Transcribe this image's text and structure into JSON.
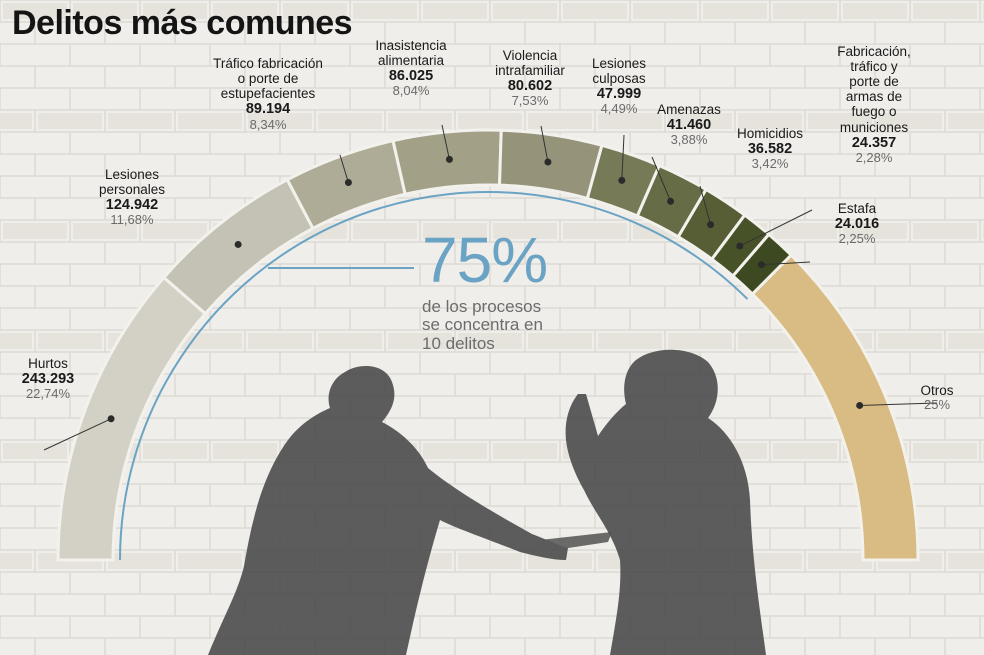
{
  "title": "Delitos más comunes",
  "center": {
    "percent": "75%",
    "caption_lines": [
      "de los procesos",
      "se concentra en",
      "10 delitos"
    ]
  },
  "colors": {
    "accent_line": "#6aa3c4",
    "otros": "#d8bc84",
    "hurtos": "#d3d1c6",
    "dark_green": "#3d4a21"
  },
  "chart_data": {
    "type": "pie",
    "title": "Delitos más comunes",
    "categories": [
      {
        "name": "Hurtos",
        "name_lines": [
          "Hurtos"
        ],
        "value": 243293,
        "value_label": "243.293",
        "percent": 22.74,
        "percent_label": "22,74%",
        "color": "#d3d1c6"
      },
      {
        "name": "Lesiones personales",
        "name_lines": [
          "Lesiones",
          "personales"
        ],
        "value": 124942,
        "value_label": "124.942",
        "percent": 11.68,
        "percent_label": "11,68%",
        "color": "#c4c2b4"
      },
      {
        "name": "Tráfico fabricación o porte de estupefacientes",
        "name_lines": [
          "Tráfico fabricación",
          "o porte de",
          "estupefacientes"
        ],
        "value": 89194,
        "value_label": "89.194",
        "percent": 8.34,
        "percent_label": "8,34%",
        "color": "#aeac97"
      },
      {
        "name": "Inasistencia alimentaria",
        "name_lines": [
          "Inasistencia",
          "alimentaria"
        ],
        "value": 86025,
        "value_label": "86.025",
        "percent": 8.04,
        "percent_label": "8,04%",
        "color": "#a2a188"
      },
      {
        "name": "Violencia intrafamiliar",
        "name_lines": [
          "Violencia",
          "intrafamiliar"
        ],
        "value": 80602,
        "value_label": "80.602",
        "percent": 7.53,
        "percent_label": "7,53%",
        "color": "#95947b"
      },
      {
        "name": "Lesiones culposas",
        "name_lines": [
          "Lesiones",
          "culposas"
        ],
        "value": 47999,
        "value_label": "47.999",
        "percent": 4.49,
        "percent_label": "4,49%",
        "color": "#767a57"
      },
      {
        "name": "Amenazas",
        "name_lines": [
          "Amenazas"
        ],
        "value": 41460,
        "value_label": "41.460",
        "percent": 3.88,
        "percent_label": "3,88%",
        "color": "#666c45"
      },
      {
        "name": "Homicidios",
        "name_lines": [
          "Homicidios"
        ],
        "value": 36582,
        "value_label": "36.582",
        "percent": 3.42,
        "percent_label": "3,42%",
        "color": "#575e36"
      },
      {
        "name": "Fabricación, tráfico y porte de armas de fuego o municiones",
        "name_lines": [
          "Fabricación,",
          "tráfico y",
          "porte de",
          "armas de",
          "fuego o",
          "municiones"
        ],
        "value": 24357,
        "value_label": "24.357",
        "percent": 2.28,
        "percent_label": "2,28%",
        "color": "#485229"
      },
      {
        "name": "Estafa",
        "name_lines": [
          "Estafa"
        ],
        "value": 24016,
        "value_label": "24.016",
        "percent": 2.25,
        "percent_label": "2,25%",
        "color": "#3d4a21"
      },
      {
        "name": "Otros",
        "name_lines": [
          "Otros"
        ],
        "value": null,
        "value_label": "",
        "percent": 25,
        "percent_label": "25%",
        "color": "#d8bc84"
      }
    ]
  }
}
